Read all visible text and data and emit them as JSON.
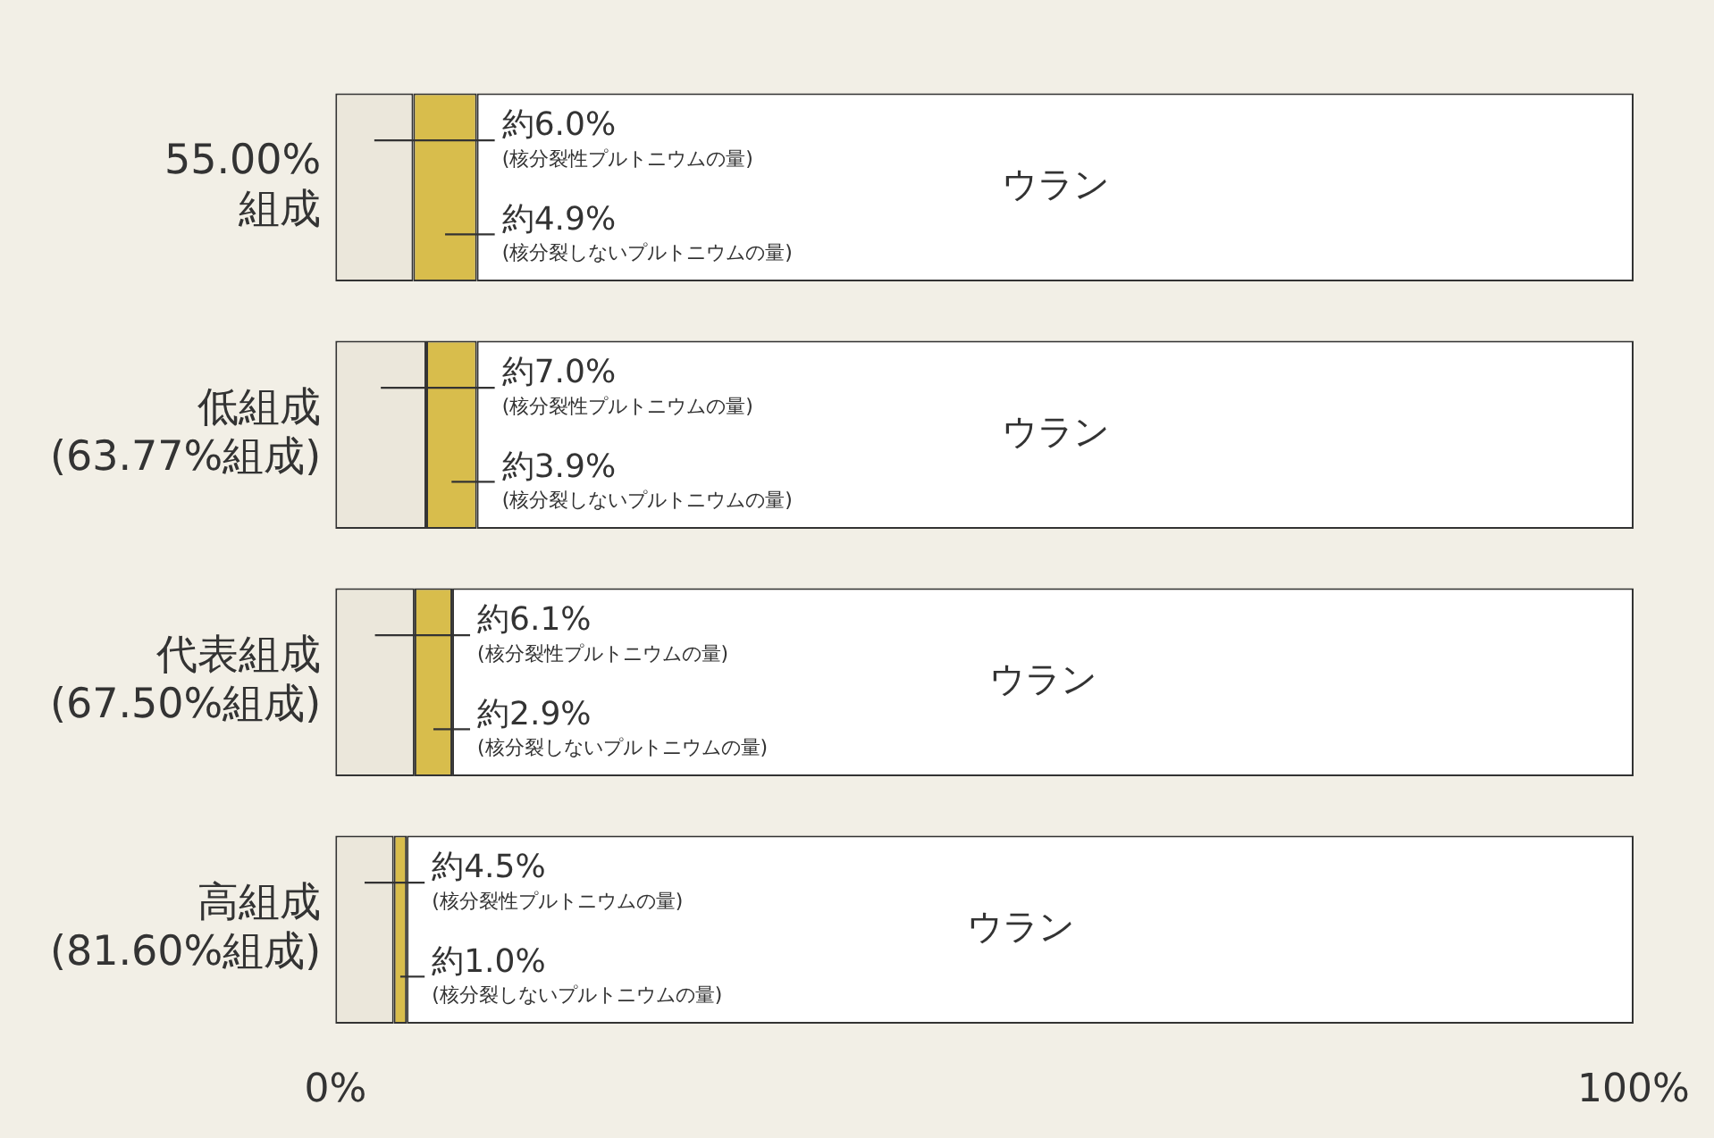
{
  "chart_data": {
    "type": "bar",
    "orientation": "horizontal",
    "stacked": true,
    "categories": [
      "55.00%\n組成",
      "低組成\n(63.77%組成)",
      "代表組成\n(67.50%組成)",
      "高組成\n(81.60%組成)"
    ],
    "series": [
      {
        "name": "(核分裂性プルトニウムの量)",
        "color": "#ebe7db",
        "values": [
          6.0,
          7.0,
          6.1,
          4.5
        ],
        "value_labels": [
          "約6.0%",
          "約7.0%",
          "約6.1%",
          "約4.5%"
        ]
      },
      {
        "name": "(核分裂しないプルトニウムの量)",
        "color": "#d8bd4c",
        "values": [
          4.9,
          3.9,
          2.9,
          1.0
        ],
        "value_labels": [
          "約4.9%",
          "約3.9%",
          "約2.9%",
          "約1.0%"
        ]
      },
      {
        "name": "ウラン",
        "color": "#ffffff",
        "values": [
          89.1,
          89.1,
          91.0,
          94.5
        ]
      }
    ],
    "xlim": [
      0,
      100
    ],
    "xticks": [
      {
        "value": 0,
        "label": "0%"
      },
      {
        "value": 100,
        "label": "100%"
      }
    ],
    "grid": false,
    "legend": false
  }
}
